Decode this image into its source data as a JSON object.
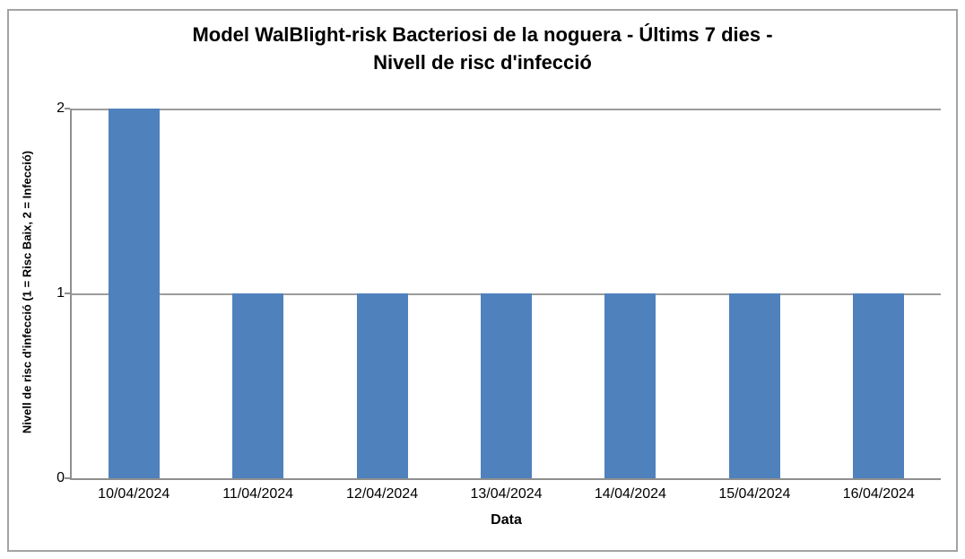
{
  "header": {
    "title_line1": "Model WalBlight-risk Bacteriosi de la noguera - Últims 7 dies -",
    "title_line2": "Nivell de risc d'infecció"
  },
  "chart_data": {
    "type": "bar",
    "title": "Model WalBlight-risk Bacteriosi de la noguera - Últims 7 dies - Nivell de risc d'infecció",
    "categories": [
      "10/04/2024",
      "11/04/2024",
      "12/04/2024",
      "13/04/2024",
      "14/04/2024",
      "15/04/2024",
      "16/04/2024"
    ],
    "values": [
      2,
      1,
      1,
      1,
      1,
      1,
      1
    ],
    "xlabel": "Data",
    "ylabel": "Nivell de risc d'infecció (1 = Risc Baix, 2 = Infecció)",
    "ylim": [
      0,
      2
    ],
    "yticks": [
      0,
      1,
      2
    ],
    "grid": "horizontal",
    "legend": "none",
    "bar_color": "#4f81bd",
    "gridline_color": "#9c9c9c",
    "axis_color": "#8f8f8f",
    "text_color": "#000000",
    "value_legend": {
      "1": "Risc Baix",
      "2": "Infecció"
    }
  }
}
